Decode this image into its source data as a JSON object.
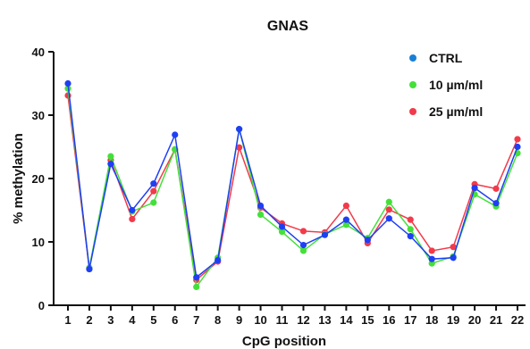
{
  "chart_data": {
    "type": "line",
    "title": "GNAS",
    "xlabel": "CpG position",
    "ylabel": "% methylation",
    "ylim": [
      0,
      40
    ],
    "yticks": [
      "0",
      "10",
      "20",
      "30",
      "40"
    ],
    "categories": [
      "1",
      "2",
      "3",
      "4",
      "5",
      "6",
      "7",
      "8",
      "9",
      "10",
      "11",
      "12",
      "13",
      "14",
      "15",
      "16",
      "17",
      "18",
      "19",
      "20",
      "21",
      "22"
    ],
    "legend_position": "top-right",
    "grid": false,
    "series": [
      {
        "name": "CTRL",
        "color": "#1f3ff5",
        "legend_color": "#1a7fd6",
        "values": [
          35.0,
          5.7,
          22.3,
          15.0,
          19.2,
          26.9,
          4.4,
          7.1,
          27.8,
          15.7,
          12.4,
          9.5,
          11.1,
          13.5,
          10.3,
          13.7,
          10.9,
          7.3,
          7.5,
          18.5,
          16.1,
          25.0
        ]
      },
      {
        "name": "10 µm/ml",
        "color": "#44e03a",
        "legend_color": "#44e03a",
        "values": [
          34.2,
          5.9,
          23.5,
          14.8,
          16.2,
          24.6,
          2.9,
          7.5,
          27.8,
          14.3,
          11.6,
          8.6,
          11.2,
          12.7,
          10.6,
          16.3,
          12.0,
          6.6,
          7.7,
          17.5,
          15.6,
          24.0
        ]
      },
      {
        "name": "25 µm/ml",
        "color": "#f23a4a",
        "legend_color": "#f23a4a",
        "values": [
          33.1,
          5.8,
          22.9,
          13.6,
          18.0,
          24.6,
          4.0,
          6.9,
          24.9,
          15.4,
          12.9,
          11.7,
          11.5,
          15.7,
          9.8,
          15.1,
          13.5,
          8.6,
          9.2,
          19.1,
          18.4,
          26.2
        ]
      }
    ]
  }
}
